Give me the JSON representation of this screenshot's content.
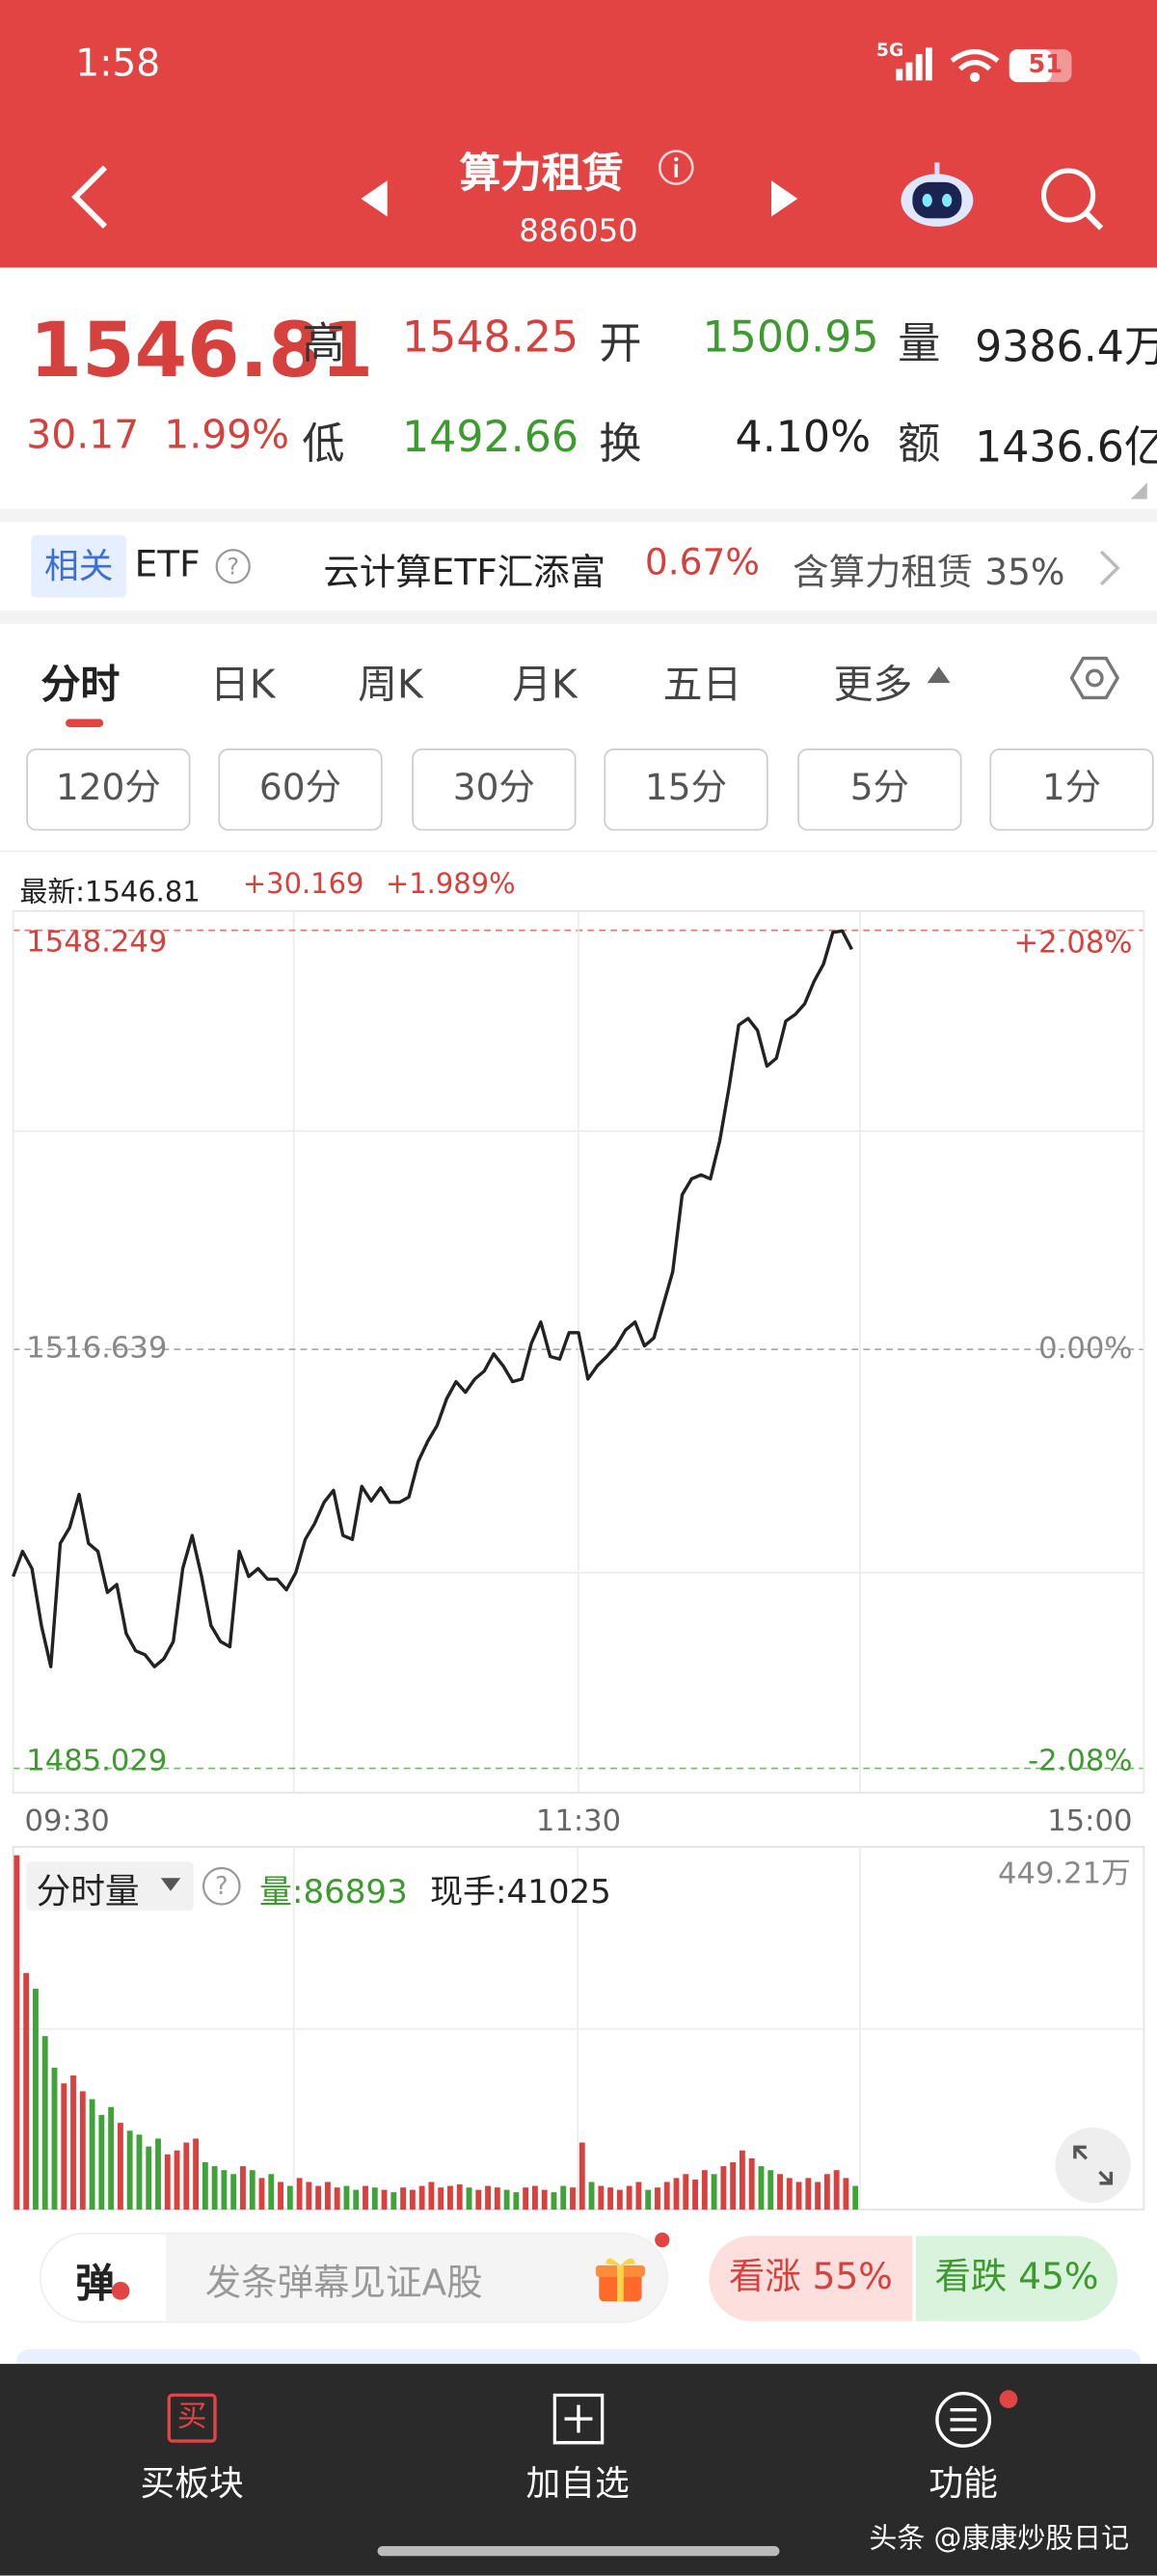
{
  "status_bar": {
    "time": "1:58",
    "network": "5G",
    "battery": "51"
  },
  "header": {
    "title": "算力租赁",
    "code": "886050"
  },
  "quote": {
    "price": "1546.81",
    "change": "30.17",
    "change_pct": "1.99%",
    "stats": [
      {
        "label": "高",
        "value": "1548.25"
      },
      {
        "label": "开",
        "value": "1500.95"
      },
      {
        "label": "量",
        "value": "9386.4万"
      },
      {
        "label": "低",
        "value": "1492.66"
      },
      {
        "label": "换",
        "value": "4.10%"
      },
      {
        "label": "额",
        "value": "1436.6亿"
      }
    ]
  },
  "etf": {
    "tag": "相关",
    "label": "ETF",
    "fund": "云计算ETF汇添富",
    "fund_change": "0.67%",
    "holding": "含算力租赁 35%"
  },
  "tabs": [
    "分时",
    "日K",
    "周K",
    "月K",
    "五日",
    "更多"
  ],
  "periods": [
    "120分",
    "60分",
    "30分",
    "15分",
    "5分",
    "1分"
  ],
  "latest": {
    "price": "最新:1546.81",
    "change": "+30.169",
    "change_pct": "+1.989%"
  },
  "volume_header": {
    "title": "分时量",
    "volume": "量:86893",
    "current": "现手:41025"
  },
  "danmaku": {
    "icon": "弹",
    "placeholder": "发条弹幕见证A股",
    "bull": "看涨 55%",
    "bear": "看跌 45%"
  },
  "nav": [
    {
      "icon": "买",
      "label": "买板块"
    },
    {
      "label": "加自选"
    },
    {
      "label": "功能"
    }
  ],
  "watermark": "头条 @康康炒股日记",
  "chart_data": [
    {
      "type": "line",
      "color": "#222222",
      "x": [
        0,
        2,
        4,
        6,
        8,
        10,
        12,
        14,
        16,
        18,
        20,
        22,
        24,
        26,
        28,
        30,
        32,
        34,
        36,
        38,
        40,
        42,
        44,
        46,
        48,
        50,
        52,
        54,
        56,
        58,
        60,
        62,
        64,
        66,
        68,
        70,
        72,
        74,
        76,
        78,
        80,
        82,
        84,
        86,
        88,
        90,
        92,
        94,
        96,
        98,
        100,
        102,
        104,
        106,
        108,
        110,
        112,
        114,
        116,
        118,
        120,
        122,
        124,
        126,
        128,
        130,
        132,
        134,
        136,
        138,
        140,
        142,
        144,
        146,
        148,
        150,
        152,
        154,
        156,
        158,
        160,
        162,
        164,
        166,
        168,
        170,
        172,
        174,
        176,
        178
      ],
      "values": [
        1499.5,
        1501.4,
        1500.1,
        1495.8,
        1492.7,
        1502.0,
        1503.2,
        1505.7,
        1502.0,
        1501.4,
        1498.3,
        1498.9,
        1495.2,
        1493.9,
        1493.6,
        1492.7,
        1493.3,
        1494.6,
        1500.1,
        1502.6,
        1499.5,
        1495.8,
        1494.6,
        1494.2,
        1501.4,
        1499.5,
        1500.1,
        1499.3,
        1499.3,
        1498.5,
        1499.8,
        1502.3,
        1503.5,
        1505.1,
        1506.0,
        1502.6,
        1502.3,
        1506.3,
        1505.2,
        1506.2,
        1505.1,
        1505.1,
        1505.5,
        1508.2,
        1509.7,
        1510.9,
        1512.9,
        1514.2,
        1513.4,
        1514.4,
        1515.0,
        1516.3,
        1515.4,
        1514.2,
        1514.4,
        1517.1,
        1518.7,
        1516.1,
        1515.9,
        1517.9,
        1517.9,
        1514.4,
        1515.4,
        1516.1,
        1516.9,
        1518.1,
        1518.7,
        1516.9,
        1517.5,
        1520.0,
        1522.5,
        1528.3,
        1529.5,
        1529.8,
        1529.5,
        1532.4,
        1536.5,
        1541.1,
        1541.6,
        1540.7,
        1538.0,
        1538.6,
        1541.4,
        1541.9,
        1542.7,
        1544.4,
        1545.7,
        1548.1,
        1548.2,
        1546.81
      ],
      "xlim": [
        0,
        240
      ],
      "xticks": [
        {
          "value": 0,
          "label": "09:30"
        },
        {
          "value": 120,
          "label": "11:30"
        },
        {
          "value": 240,
          "label": "15:00"
        }
      ],
      "ylim": [
        1483.2,
        1549.7
      ],
      "yticks": [
        1548.249,
        1516.639,
        1485.029
      ],
      "y2lim": [
        -2.2,
        2.18
      ],
      "y2ticks": [
        {
          "value": 2.08,
          "label": "+2.08%"
        },
        {
          "value": 0,
          "label": "0.00%"
        },
        {
          "value": -2.08,
          "label": "-2.08%"
        }
      ],
      "up_color": "#d6403d",
      "down_color": "#3d9a2f",
      "flat_color": "#888888"
    },
    {
      "type": "bar",
      "up_color": "#d9413f",
      "down_color": "#3fa33a",
      "values": [
        449.21,
        300,
        280,
        220,
        180,
        160,
        170,
        150,
        140,
        120,
        130,
        110,
        100,
        95,
        80,
        90,
        70,
        75,
        85,
        90,
        60,
        55,
        50,
        45,
        55,
        50,
        40,
        45,
        35,
        30,
        40,
        35,
        30,
        35,
        28,
        30,
        25,
        30,
        28,
        25,
        22,
        28,
        25,
        30,
        35,
        28,
        30,
        32,
        28,
        25,
        30,
        28,
        25,
        22,
        28,
        30,
        25,
        22,
        30,
        28,
        85,
        35,
        30,
        28,
        25,
        30,
        35,
        25,
        28,
        35,
        40,
        45,
        38,
        50,
        45,
        55,
        60,
        75,
        65,
        55,
        50,
        45,
        40,
        35,
        40,
        35,
        45,
        50,
        40,
        30
      ],
      "ylim": [
        0,
        460
      ],
      "yticks": [
        {
          "value": 449.21,
          "label": "449.21万"
        }
      ]
    }
  ]
}
